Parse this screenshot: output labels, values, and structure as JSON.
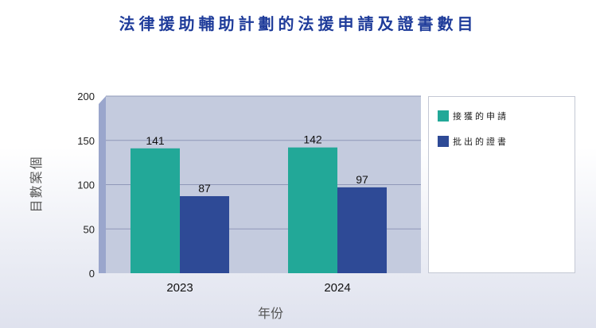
{
  "chart_data": {
    "type": "bar",
    "title": "法律援助輔助計劃的法援申請及證書數目",
    "xlabel": "年份",
    "ylabel": "個案數目",
    "categories": [
      "2023",
      "2024"
    ],
    "series": [
      {
        "name": "接獲的申請",
        "values": [
          141,
          142
        ],
        "color": "#22a898"
      },
      {
        "name": "批出的證書",
        "values": [
          87,
          97
        ],
        "color": "#2e4a96"
      }
    ],
    "ylim": [
      0,
      200
    ],
    "yticks": [
      0,
      50,
      100,
      150,
      200
    ],
    "grid": true,
    "legend_position": "right",
    "plot_background": "#c4cbde"
  }
}
